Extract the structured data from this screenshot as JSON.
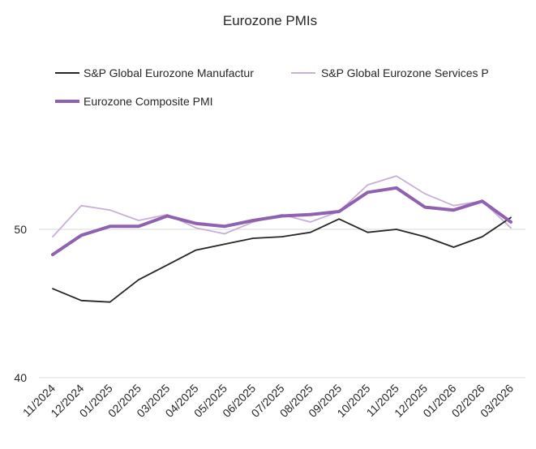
{
  "chart_data": {
    "type": "line",
    "title": "Eurozone PMIs",
    "xlabel": "",
    "ylabel": "",
    "ylim": [
      40,
      60
    ],
    "yticks": [
      40,
      50
    ],
    "grid": true,
    "legend_position": "top-left",
    "x": [
      "11/2024",
      "12/2024",
      "01/2025",
      "02/2025",
      "03/2025",
      "04/2025",
      "05/2025",
      "06/2025",
      "07/2025",
      "08/2025",
      "09/2025",
      "10/2025",
      "11/2025",
      "12/2025",
      "01/2026",
      "02/2026",
      "03/2026"
    ],
    "series": [
      {
        "name": "S&P Global Eurozone Manufactur",
        "color": "#262626",
        "values": [
          46.0,
          45.2,
          45.1,
          46.6,
          47.6,
          48.6,
          49.0,
          49.4,
          49.5,
          49.8,
          50.7,
          49.8,
          50.0,
          49.5,
          48.8,
          49.5,
          50.8
        ]
      },
      {
        "name": "S&P Global Eurozone Services P",
        "color": "#c9aed8",
        "values": [
          49.5,
          51.6,
          51.3,
          50.6,
          51.0,
          50.1,
          49.7,
          50.5,
          51.0,
          50.5,
          51.2,
          53.0,
          53.6,
          52.4,
          51.6,
          51.9,
          50.1
        ]
      },
      {
        "name": "Eurozone Composite PMI",
        "color": "#9061b0",
        "values": [
          48.3,
          49.6,
          50.2,
          50.2,
          50.9,
          50.4,
          50.2,
          50.6,
          50.9,
          51.0,
          51.2,
          52.5,
          52.8,
          51.5,
          51.3,
          51.9,
          50.5
        ]
      }
    ]
  }
}
